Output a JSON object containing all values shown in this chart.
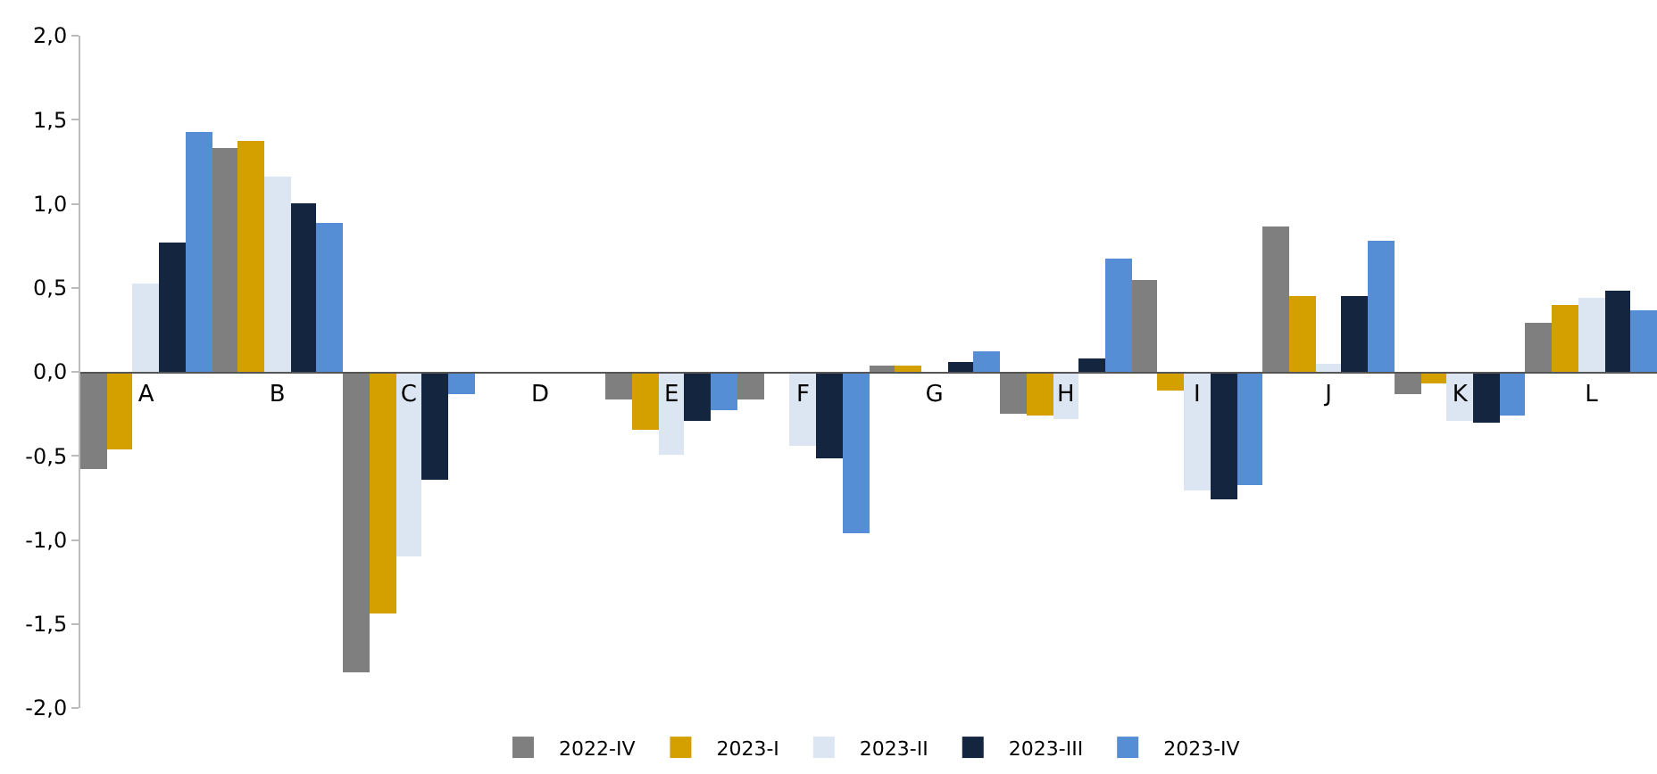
{
  "chart_data": {
    "type": "bar",
    "categories": [
      "A",
      "B",
      "C",
      "D",
      "E",
      "F",
      "G",
      "H",
      "I",
      "J",
      "K",
      "L"
    ],
    "series": [
      {
        "name": "2022-IV",
        "color": "#7f7f7f",
        "values": [
          -0.58,
          1.33,
          -1.79,
          0.0,
          -0.16,
          -0.16,
          0.04,
          -0.25,
          0.55,
          0.87,
          -0.13,
          0.29
        ]
      },
      {
        "name": "2023-I",
        "color": "#d4a000",
        "values": [
          -0.46,
          1.37,
          -1.44,
          0.0,
          -0.34,
          0.0,
          0.04,
          -0.26,
          -0.11,
          0.45,
          -0.07,
          0.4
        ]
      },
      {
        "name": "2023-II",
        "color": "#dce6f2",
        "values": [
          0.52,
          1.16,
          -1.1,
          0.0,
          -0.49,
          -0.44,
          0.0,
          -0.28,
          -0.71,
          0.05,
          -0.29,
          0.44
        ]
      },
      {
        "name": "2023-III",
        "color": "#13253f",
        "values": [
          0.77,
          1.0,
          -0.64,
          0.0,
          -0.29,
          -0.51,
          0.06,
          0.08,
          -0.76,
          0.45,
          -0.3,
          0.48
        ]
      },
      {
        "name": "2023-IV",
        "color": "#558ed5",
        "values": [
          1.43,
          0.89,
          -0.13,
          0.0,
          -0.23,
          -0.96,
          0.12,
          0.67,
          -0.67,
          0.78,
          -0.26,
          0.37
        ]
      }
    ],
    "ylim": [
      -2.0,
      2.0
    ],
    "yticks": [
      {
        "value": -2.0,
        "label": "-2,0"
      },
      {
        "value": -1.5,
        "label": "-1,5"
      },
      {
        "value": -1.0,
        "label": "-1,0"
      },
      {
        "value": -0.5,
        "label": "-0,5"
      },
      {
        "value": 0.0,
        "label": "0,0"
      },
      {
        "value": 0.5,
        "label": "0,5"
      },
      {
        "value": 1.0,
        "label": "1,0"
      },
      {
        "value": 1.5,
        "label": "1,5"
      },
      {
        "value": 2.0,
        "label": "2,0"
      }
    ],
    "legend": "bottom"
  }
}
